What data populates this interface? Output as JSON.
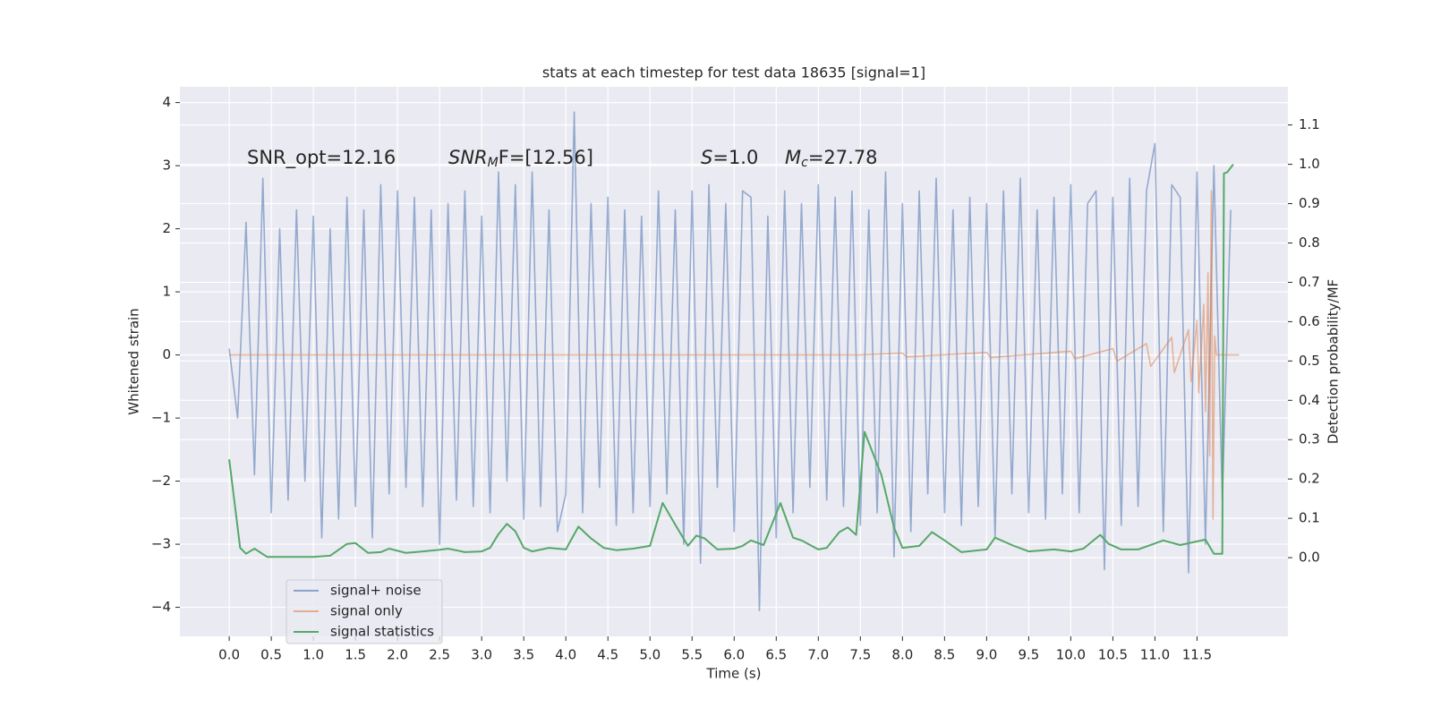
{
  "chart_data": {
    "type": "line",
    "title": "stats at each timestep for test data 18635 [signal=1]",
    "xlabel": "Time (s)",
    "ylabel": "Whitened strain",
    "y2label": "Detection probability/MF",
    "annotations": [
      {
        "text": "SNR_opt=12.16"
      },
      {
        "base": "SNR",
        "sub": "M",
        "rest": "F=[12.56]"
      },
      {
        "base": "S",
        "rest": "=1.0"
      },
      {
        "base": "M",
        "sub": "c",
        "rest": "=27.78"
      }
    ],
    "xlim": [
      -0.586,
      12.58
    ],
    "ylim": [
      -4.46,
      4.25
    ],
    "y2lim": [
      -0.2,
      1.197
    ],
    "xticks": [
      {
        "value": 0,
        "label": "0.0"
      },
      0.5,
      {
        "value": 1,
        "label": "1.0"
      },
      1.5,
      {
        "value": 2,
        "label": "2.0"
      },
      2.5,
      {
        "value": 3,
        "label": "3.0"
      },
      3.5,
      {
        "value": 4,
        "label": "4.0"
      },
      4.5,
      {
        "value": 5,
        "label": "5.0"
      },
      5.5,
      {
        "value": 6,
        "label": "6.0"
      },
      6.5,
      {
        "value": 7,
        "label": "7.0"
      },
      7.5,
      {
        "value": 8,
        "label": "8.0"
      },
      8.5,
      {
        "value": 9,
        "label": "9.0"
      },
      9.5,
      {
        "value": 10,
        "label": "10.0"
      },
      10.5,
      {
        "value": 11,
        "label": "11.0"
      },
      11.5
    ],
    "yticks": [
      {
        "value": -4,
        "label": "−4"
      },
      {
        "value": -3,
        "label": "−3"
      },
      {
        "value": -2,
        "label": "−2"
      },
      {
        "value": -1,
        "label": "−1"
      },
      0,
      1,
      2,
      3,
      4
    ],
    "y2ticks": [
      {
        "value": 0,
        "label": "0.0"
      },
      0.1,
      0.2,
      0.3,
      0.4,
      0.5,
      0.6,
      0.7,
      0.8,
      0.9,
      {
        "value": 1,
        "label": "1.0"
      },
      1.1
    ],
    "grid": true,
    "legend": "lower left",
    "series": [
      {
        "name": "signal+ noise",
        "color": "#4c72b0",
        "x": [
          0,
          0.1,
          0.2,
          0.3,
          0.4,
          0.5,
          0.6,
          0.7,
          0.8,
          0.9,
          1,
          1.1,
          1.2,
          1.3,
          1.4,
          1.5,
          1.6,
          1.7,
          1.8,
          1.9,
          2,
          2.1,
          2.2,
          2.3,
          2.4,
          2.5,
          2.6,
          2.7,
          2.8,
          2.9,
          3,
          3.1,
          3.2,
          3.3,
          3.4,
          3.5,
          3.6,
          3.7,
          3.8,
          3.9,
          4,
          4.1,
          4.2,
          4.3,
          4.4,
          4.5,
          4.6,
          4.7,
          4.8,
          4.9,
          5,
          5.1,
          5.2,
          5.3,
          5.4,
          5.5,
          5.6,
          5.7,
          5.8,
          5.9,
          6,
          6.1,
          6.2,
          6.3,
          6.4,
          6.5,
          6.6,
          6.7,
          6.8,
          6.9,
          7,
          7.1,
          7.2,
          7.3,
          7.4,
          7.5,
          7.6,
          7.7,
          7.8,
          7.9,
          8,
          8.1,
          8.2,
          8.3,
          8.4,
          8.5,
          8.6,
          8.7,
          8.8,
          8.9,
          9,
          9.1,
          9.2,
          9.3,
          9.4,
          9.5,
          9.6,
          9.7,
          9.8,
          9.9,
          10,
          10.1,
          10.2,
          10.3,
          10.4,
          10.5,
          10.6,
          10.7,
          10.8,
          10.9,
          11,
          11.1,
          11.2,
          11.3,
          11.4,
          11.5,
          11.6,
          11.7,
          11.8,
          11.9
        ],
        "values": [
          0.1,
          -1.0,
          2.1,
          -1.9,
          2.8,
          -2.5,
          2.0,
          -2.3,
          2.3,
          -2.0,
          2.2,
          -2.9,
          2.0,
          -2.6,
          2.5,
          -2.4,
          2.3,
          -2.9,
          2.7,
          -2.2,
          2.6,
          -2.1,
          2.5,
          -2.4,
          2.3,
          -3.0,
          2.4,
          -2.3,
          2.6,
          -2.4,
          2.2,
          -2.5,
          2.9,
          -2.0,
          2.7,
          -2.6,
          2.9,
          -2.4,
          2.3,
          -2.8,
          -2.2,
          3.85,
          -2.5,
          2.4,
          -2.1,
          2.5,
          -2.7,
          2.3,
          -2.5,
          2.2,
          -2.4,
          2.6,
          -2.2,
          2.3,
          -3.0,
          2.6,
          -3.3,
          2.7,
          -2.1,
          2.4,
          -2.8,
          2.6,
          2.5,
          -4.05,
          2.2,
          -2.9,
          2.6,
          -2.5,
          2.4,
          -2.1,
          2.7,
          -2.3,
          2.5,
          -2.4,
          2.6,
          -2.7,
          2.3,
          -2.5,
          2.9,
          -3.2,
          2.4,
          -2.8,
          2.6,
          -2.2,
          2.8,
          -2.5,
          2.3,
          -2.7,
          2.5,
          -2.4,
          2.4,
          -2.9,
          2.6,
          -2.2,
          2.8,
          -2.5,
          2.3,
          -2.6,
          2.5,
          -2.2,
          2.7,
          -2.5,
          2.4,
          2.6,
          -3.4,
          2.5,
          -2.7,
          2.8,
          -2.4,
          2.6,
          3.35,
          -2.8,
          2.7,
          2.5,
          -3.45,
          2.9,
          -3.0,
          3.0,
          -2.3,
          2.3
        ]
      },
      {
        "name": "signal only",
        "color": "#dd8452",
        "x": [
          0,
          7.5,
          8.0,
          8.05,
          9.0,
          9.05,
          10.0,
          10.05,
          10.5,
          10.55,
          10.9,
          10.95,
          11.2,
          11.23,
          11.4,
          11.43,
          11.5,
          11.52,
          11.58,
          11.6,
          11.63,
          11.65,
          11.67,
          11.69,
          11.71,
          11.73,
          12.0
        ],
        "values": [
          0,
          0,
          0.03,
          -0.03,
          0.04,
          -0.04,
          0.06,
          -0.06,
          0.1,
          -0.1,
          0.18,
          -0.18,
          0.28,
          -0.28,
          0.4,
          -0.42,
          0.55,
          -0.6,
          0.8,
          -0.9,
          1.3,
          -1.6,
          2.6,
          -2.6,
          0.3,
          0,
          0
        ]
      },
      {
        "name": "signal statistics",
        "color": "#55a868",
        "axis": "y2",
        "x": [
          0,
          0.13,
          0.2,
          0.3,
          0.45,
          0.6,
          1.0,
          1.2,
          1.4,
          1.5,
          1.65,
          1.8,
          1.9,
          2.1,
          2.3,
          2.5,
          2.6,
          2.8,
          3.0,
          3.1,
          3.2,
          3.3,
          3.4,
          3.5,
          3.6,
          3.8,
          4.0,
          4.15,
          4.3,
          4.45,
          4.6,
          4.8,
          5.0,
          5.15,
          5.3,
          5.45,
          5.55,
          5.65,
          5.8,
          6.0,
          6.1,
          6.2,
          6.35,
          6.55,
          6.7,
          6.8,
          7.0,
          7.1,
          7.25,
          7.35,
          7.45,
          7.55,
          7.75,
          7.9,
          8.0,
          8.2,
          8.35,
          8.5,
          8.7,
          9.0,
          9.1,
          9.3,
          9.5,
          9.8,
          10.0,
          10.15,
          10.35,
          10.45,
          10.6,
          10.8,
          11.1,
          11.3,
          11.6,
          11.7,
          11.8,
          11.82,
          11.86,
          11.93
        ],
        "values": [
          0.25,
          0.025,
          0.01,
          0.023,
          0.002,
          0.002,
          0.002,
          0.005,
          0.035,
          0.037,
          0.012,
          0.014,
          0.023,
          0.012,
          0.016,
          0.02,
          0.023,
          0.014,
          0.016,
          0.025,
          0.06,
          0.086,
          0.067,
          0.025,
          0.016,
          0.025,
          0.021,
          0.079,
          0.049,
          0.025,
          0.019,
          0.023,
          0.03,
          0.139,
          0.084,
          0.03,
          0.056,
          0.049,
          0.021,
          0.023,
          0.03,
          0.044,
          0.032,
          0.139,
          0.051,
          0.044,
          0.021,
          0.025,
          0.065,
          0.077,
          0.058,
          0.32,
          0.21,
          0.077,
          0.025,
          0.03,
          0.065,
          0.044,
          0.014,
          0.021,
          0.051,
          0.032,
          0.016,
          0.021,
          0.016,
          0.023,
          0.058,
          0.035,
          0.021,
          0.021,
          0.044,
          0.032,
          0.046,
          0.01,
          0.01,
          0.977,
          0.98,
          1.0
        ]
      }
    ]
  }
}
